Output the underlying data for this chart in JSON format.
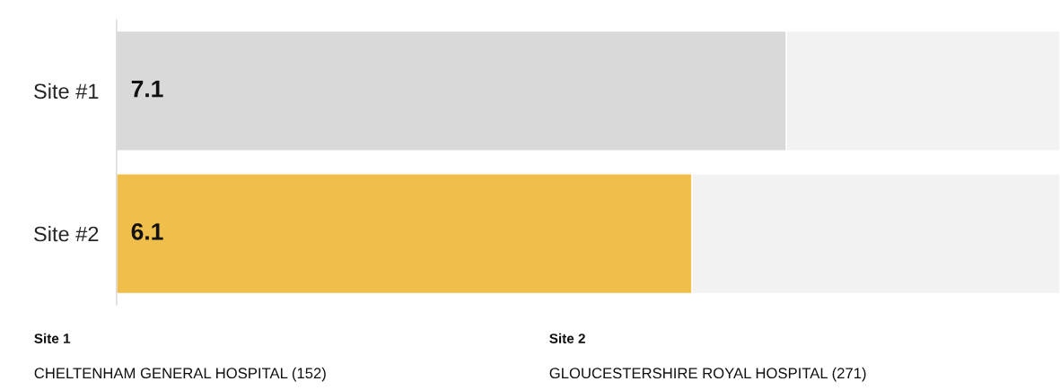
{
  "chart_data": {
    "type": "bar",
    "orientation": "horizontal",
    "stacked": true,
    "categories": [
      "Site #1",
      "Site #2"
    ],
    "series": [
      {
        "colors": [
          "#d9d9d9",
          "#f0be4a"
        ],
        "values": [
          7.1,
          6.1
        ],
        "data_labels": true
      },
      {
        "colors": [
          "#f2f2f2",
          "#f2f2f2"
        ],
        "values": [
          2.9,
          3.9
        ]
      }
    ],
    "xlim": [
      0,
      10
    ],
    "tick_labels": "y",
    "legend": false,
    "annotations": [
      "Site 1",
      "CHELTENHAM GENERAL HOSPITAL (152)",
      "Site 2",
      "GLOUCESTERSHIRE ROYAL HOSPITAL (271)"
    ]
  }
}
